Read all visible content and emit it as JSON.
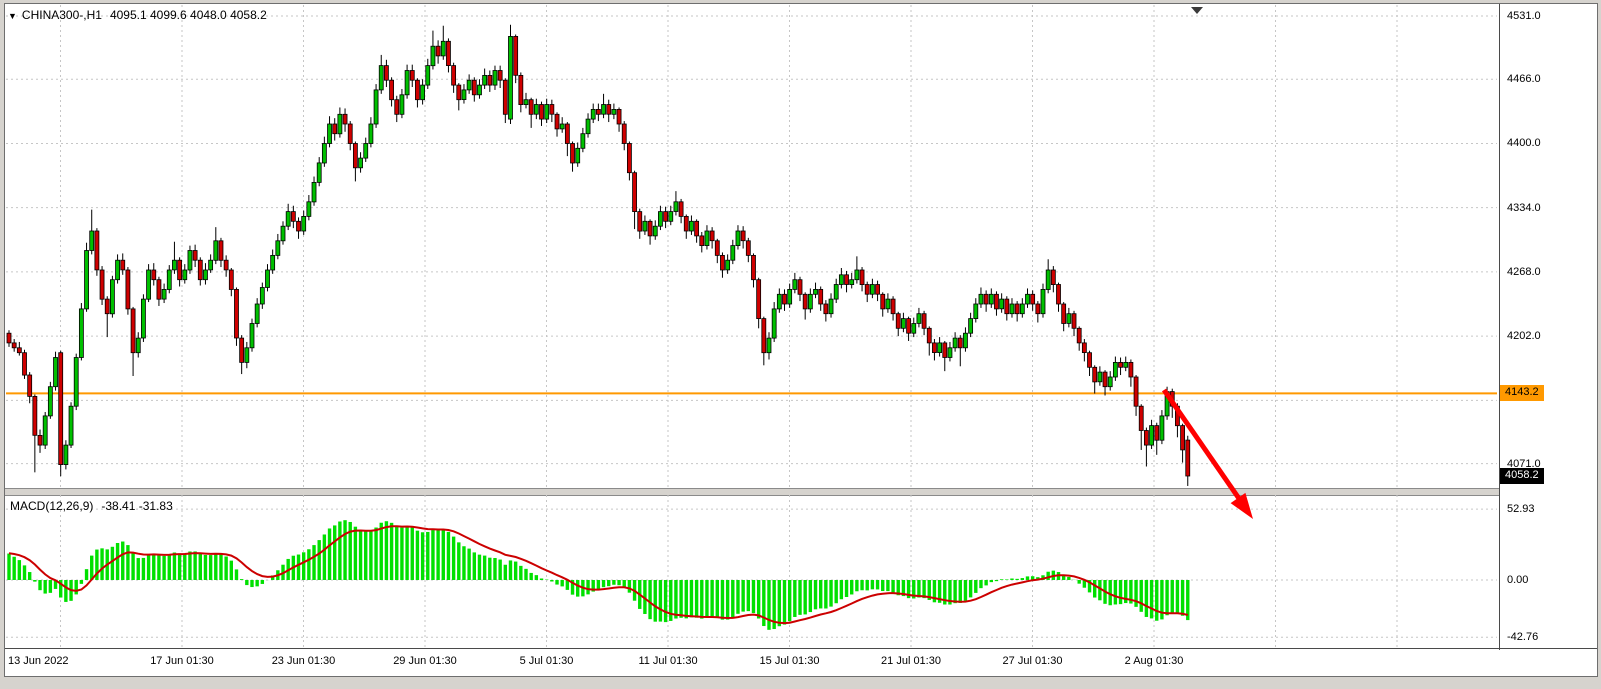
{
  "header": {
    "collapse_icon": "▼",
    "symbol_period": "CHINA300-,H1",
    "ohlc_text": "4095.1 4099.6 4048.0 4058.2"
  },
  "indicator_label": {
    "name": "MACD(12,26,9)",
    "values": "-38.41 -31.83"
  },
  "tags": {
    "hline": {
      "text": "4143.2",
      "value": 4143.2,
      "color": "#FF9900"
    },
    "current": {
      "text": "4058.2",
      "value": 4058.2,
      "bg": "#000000",
      "fg": "#FFFFFF"
    }
  },
  "chart_data": {
    "type": "candlestick",
    "title": "CHINA300-,H1",
    "symbol": "CHINA300-",
    "timeframe": "H1",
    "current_ohlc": {
      "open": 4095.1,
      "high": 4099.6,
      "low": 4048.0,
      "close": 4058.2
    },
    "price_ticks": [
      {
        "text": "4531.0",
        "value": 4531
      },
      {
        "text": "4466.0",
        "value": 4466
      },
      {
        "text": "4400.0",
        "value": 4400
      },
      {
        "text": "4334.0",
        "value": 4334
      },
      {
        "text": "4268.0",
        "value": 4268
      },
      {
        "text": "4202.0",
        "value": 4202
      },
      {
        "text": "4071.0",
        "value": 4071
      }
    ],
    "grid_levels": [
      4531,
      4466,
      4400,
      4334,
      4268,
      4202,
      4136,
      4071
    ],
    "x_tick_labels": [
      "13 Jun 2022",
      "17 Jun 01:30",
      "23 Jun 01:30",
      "29 Jun 01:30",
      "5 Jul 01:30",
      "11 Jul 01:30",
      "15 Jul 01:30",
      "21 Jul 01:30",
      "27 Jul 01:30",
      "2 Aug 01:30"
    ],
    "horizontal_line": {
      "value": 4143.2,
      "color": "#FF9900"
    },
    "arrow": {
      "from": [
        1164,
        390
      ],
      "to": [
        1253,
        519
      ],
      "color": "#FF0000"
    },
    "candles": [
      [
        4205,
        4208,
        4191,
        4195
      ],
      [
        4195,
        4199,
        4186,
        4190
      ],
      [
        4190,
        4196,
        4182,
        4185
      ],
      [
        4185,
        4188,
        4158,
        4162
      ],
      [
        4162,
        4165,
        4133,
        4140
      ],
      [
        4140,
        4142,
        4062,
        4100
      ],
      [
        4100,
        4106,
        4082,
        4090
      ],
      [
        4090,
        4124,
        4086,
        4120
      ],
      [
        4120,
        4155,
        4117,
        4150
      ],
      [
        4150,
        4186,
        4146,
        4180
      ],
      [
        4185,
        4187,
        4058,
        4070
      ],
      [
        4070,
        4095,
        4065,
        4090
      ],
      [
        4090,
        4134,
        4087,
        4130
      ],
      [
        4130,
        4184,
        4126,
        4180
      ],
      [
        4180,
        4236,
        4177,
        4230
      ],
      [
        4230,
        4298,
        4227,
        4290
      ],
      [
        4290,
        4332,
        4286,
        4310
      ],
      [
        4310,
        4313,
        4264,
        4270
      ],
      [
        4270,
        4274,
        4234,
        4240
      ],
      [
        4240,
        4243,
        4201,
        4225
      ],
      [
        4225,
        4264,
        4221,
        4260
      ],
      [
        4260,
        4286,
        4256,
        4280
      ],
      [
        4280,
        4287,
        4265,
        4270
      ],
      [
        4270,
        4273,
        4224,
        4230
      ],
      [
        4230,
        4232,
        4161,
        4185
      ],
      [
        4185,
        4206,
        4180,
        4200
      ],
      [
        4200,
        4245,
        4196,
        4240
      ],
      [
        4240,
        4276,
        4237,
        4270
      ],
      [
        4270,
        4277,
        4254,
        4260
      ],
      [
        4260,
        4263,
        4233,
        4240
      ],
      [
        4240,
        4256,
        4236,
        4250
      ],
      [
        4250,
        4275,
        4246,
        4270
      ],
      [
        4270,
        4299,
        4266,
        4280
      ],
      [
        4280,
        4283,
        4253,
        4260
      ],
      [
        4260,
        4276,
        4256,
        4270
      ],
      [
        4270,
        4295,
        4266,
        4290
      ],
      [
        4290,
        4296,
        4273,
        4280
      ],
      [
        4280,
        4283,
        4254,
        4260
      ],
      [
        4260,
        4277,
        4255,
        4270
      ],
      [
        4270,
        4286,
        4267,
        4280
      ],
      [
        4280,
        4314,
        4276,
        4300
      ],
      [
        4300,
        4303,
        4273,
        4280
      ],
      [
        4280,
        4285,
        4263,
        4270
      ],
      [
        4270,
        4272,
        4243,
        4250
      ],
      [
        4250,
        4252,
        4192,
        4200
      ],
      [
        4200,
        4203,
        4163,
        4175
      ],
      [
        4175,
        4196,
        4169,
        4190
      ],
      [
        4190,
        4220,
        4186,
        4215
      ],
      [
        4215,
        4241,
        4211,
        4235
      ],
      [
        4235,
        4257,
        4230,
        4252
      ],
      [
        4252,
        4276,
        4248,
        4270
      ],
      [
        4270,
        4291,
        4266,
        4285
      ],
      [
        4285,
        4307,
        4281,
        4300
      ],
      [
        4300,
        4320,
        4296,
        4315
      ],
      [
        4315,
        4338,
        4311,
        4330
      ],
      [
        4330,
        4336,
        4313,
        4320
      ],
      [
        4320,
        4324,
        4302,
        4310
      ],
      [
        4310,
        4331,
        4306,
        4325
      ],
      [
        4325,
        4347,
        4321,
        4340
      ],
      [
        4340,
        4366,
        4336,
        4360
      ],
      [
        4360,
        4386,
        4356,
        4380
      ],
      [
        4380,
        4407,
        4376,
        4400
      ],
      [
        4400,
        4428,
        4396,
        4420
      ],
      [
        4420,
        4426,
        4403,
        4410
      ],
      [
        4410,
        4437,
        4406,
        4430
      ],
      [
        4430,
        4436,
        4412,
        4420
      ],
      [
        4420,
        4423,
        4393,
        4400
      ],
      [
        4400,
        4402,
        4361,
        4375
      ],
      [
        4375,
        4391,
        4370,
        4385
      ],
      [
        4385,
        4406,
        4381,
        4400
      ],
      [
        4400,
        4427,
        4396,
        4420
      ],
      [
        4420,
        4461,
        4416,
        4455
      ],
      [
        4455,
        4491,
        4451,
        4480
      ],
      [
        4480,
        4486,
        4458,
        4465
      ],
      [
        4465,
        4468,
        4438,
        4445
      ],
      [
        4445,
        4449,
        4422,
        4430
      ],
      [
        4430,
        4456,
        4426,
        4450
      ],
      [
        4450,
        4481,
        4446,
        4475
      ],
      [
        4475,
        4481,
        4458,
        4465
      ],
      [
        4465,
        4467,
        4437,
        4445
      ],
      [
        4445,
        4466,
        4440,
        4460
      ],
      [
        4460,
        4487,
        4456,
        4480
      ],
      [
        4480,
        4516,
        4476,
        4500
      ],
      [
        4500,
        4506,
        4482,
        4490
      ],
      [
        4490,
        4521,
        4486,
        4505
      ],
      [
        4505,
        4508,
        4473,
        4480
      ],
      [
        4480,
        4483,
        4452,
        4460
      ],
      [
        4460,
        4462,
        4434,
        4445
      ],
      [
        4445,
        4461,
        4441,
        4455
      ],
      [
        4455,
        4471,
        4451,
        4465
      ],
      [
        4465,
        4468,
        4443,
        4450
      ],
      [
        4450,
        4466,
        4446,
        4460
      ],
      [
        4460,
        4477,
        4456,
        4470
      ],
      [
        4470,
        4475,
        4453,
        4460
      ],
      [
        4460,
        4480,
        4455,
        4475
      ],
      [
        4475,
        4480,
        4457,
        4465
      ],
      [
        4465,
        4467,
        4421,
        4430
      ],
      [
        4425,
        4522,
        4420,
        4510
      ],
      [
        4510,
        4512,
        4462,
        4470
      ],
      [
        4470,
        4473,
        4432,
        4440
      ],
      [
        4440,
        4452,
        4436,
        4445
      ],
      [
        4445,
        4447,
        4416,
        4430
      ],
      [
        4430,
        4446,
        4425,
        4440
      ],
      [
        4440,
        4443,
        4418,
        4425
      ],
      [
        4425,
        4446,
        4421,
        4440
      ],
      [
        4440,
        4445,
        4422,
        4430
      ],
      [
        4430,
        4432,
        4407,
        4415
      ],
      [
        4415,
        4427,
        4411,
        4420
      ],
      [
        4420,
        4422,
        4387,
        4400
      ],
      [
        4400,
        4402,
        4371,
        4380
      ],
      [
        4380,
        4401,
        4376,
        4395
      ],
      [
        4395,
        4416,
        4391,
        4410
      ],
      [
        4410,
        4431,
        4406,
        4425
      ],
      [
        4425,
        4441,
        4421,
        4435
      ],
      [
        4435,
        4441,
        4423,
        4430
      ],
      [
        4430,
        4451,
        4426,
        4440
      ],
      [
        4440,
        4445,
        4422,
        4430
      ],
      [
        4430,
        4441,
        4425,
        4435
      ],
      [
        4435,
        4437,
        4412,
        4420
      ],
      [
        4420,
        4423,
        4393,
        4400
      ],
      [
        4400,
        4402,
        4362,
        4370
      ],
      [
        4370,
        4372,
        4312,
        4330
      ],
      [
        4330,
        4333,
        4302,
        4310
      ],
      [
        4310,
        4326,
        4306,
        4320
      ],
      [
        4320,
        4322,
        4296,
        4305
      ],
      [
        4305,
        4321,
        4301,
        4315
      ],
      [
        4315,
        4336,
        4311,
        4330
      ],
      [
        4330,
        4335,
        4313,
        4320
      ],
      [
        4320,
        4336,
        4316,
        4330
      ],
      [
        4330,
        4351,
        4326,
        4340
      ],
      [
        4340,
        4343,
        4318,
        4325
      ],
      [
        4325,
        4327,
        4302,
        4310
      ],
      [
        4310,
        4326,
        4306,
        4320
      ],
      [
        4320,
        4322,
        4298,
        4305
      ],
      [
        4305,
        4309,
        4288,
        4295
      ],
      [
        4295,
        4316,
        4291,
        4310
      ],
      [
        4310,
        4314,
        4292,
        4300
      ],
      [
        4300,
        4302,
        4277,
        4285
      ],
      [
        4285,
        4288,
        4262,
        4270
      ],
      [
        4270,
        4286,
        4266,
        4280
      ],
      [
        4280,
        4301,
        4276,
        4295
      ],
      [
        4295,
        4316,
        4291,
        4310
      ],
      [
        4310,
        4315,
        4292,
        4300
      ],
      [
        4300,
        4303,
        4278,
        4285
      ],
      [
        4285,
        4287,
        4252,
        4260
      ],
      [
        4260,
        4262,
        4210,
        4220
      ],
      [
        4220,
        4222,
        4172,
        4185
      ],
      [
        4185,
        4206,
        4178,
        4200
      ],
      [
        4200,
        4237,
        4196,
        4230
      ],
      [
        4230,
        4251,
        4226,
        4245
      ],
      [
        4245,
        4250,
        4228,
        4235
      ],
      [
        4235,
        4256,
        4231,
        4250
      ],
      [
        4250,
        4267,
        4246,
        4260
      ],
      [
        4260,
        4263,
        4238,
        4245
      ],
      [
        4245,
        4247,
        4219,
        4230
      ],
      [
        4230,
        4251,
        4226,
        4245
      ],
      [
        4245,
        4257,
        4241,
        4250
      ],
      [
        4250,
        4253,
        4228,
        4235
      ],
      [
        4235,
        4239,
        4217,
        4225
      ],
      [
        4225,
        4246,
        4221,
        4240
      ],
      [
        4240,
        4261,
        4236,
        4255
      ],
      [
        4255,
        4272,
        4251,
        4265
      ],
      [
        4265,
        4269,
        4247,
        4255
      ],
      [
        4255,
        4267,
        4251,
        4260
      ],
      [
        4260,
        4284,
        4256,
        4270
      ],
      [
        4270,
        4273,
        4248,
        4255
      ],
      [
        4255,
        4258,
        4237,
        4245
      ],
      [
        4245,
        4261,
        4241,
        4255
      ],
      [
        4255,
        4259,
        4238,
        4245
      ],
      [
        4245,
        4247,
        4222,
        4230
      ],
      [
        4230,
        4246,
        4226,
        4240
      ],
      [
        4240,
        4243,
        4218,
        4225
      ],
      [
        4225,
        4227,
        4202,
        4210
      ],
      [
        4210,
        4226,
        4206,
        4220
      ],
      [
        4220,
        4222,
        4197,
        4205
      ],
      [
        4205,
        4221,
        4201,
        4215
      ],
      [
        4215,
        4231,
        4211,
        4225
      ],
      [
        4225,
        4228,
        4203,
        4210
      ],
      [
        4210,
        4212,
        4182,
        4195
      ],
      [
        4195,
        4199,
        4177,
        4185
      ],
      [
        4185,
        4201,
        4181,
        4195
      ],
      [
        4195,
        4197,
        4166,
        4180
      ],
      [
        4180,
        4196,
        4176,
        4190
      ],
      [
        4190,
        4206,
        4186,
        4200
      ],
      [
        4200,
        4203,
        4171,
        4190
      ],
      [
        4190,
        4211,
        4186,
        4205
      ],
      [
        4205,
        4226,
        4201,
        4220
      ],
      [
        4220,
        4241,
        4216,
        4235
      ],
      [
        4235,
        4252,
        4231,
        4245
      ],
      [
        4245,
        4249,
        4227,
        4235
      ],
      [
        4235,
        4251,
        4231,
        4245
      ],
      [
        4245,
        4248,
        4223,
        4230
      ],
      [
        4230,
        4246,
        4226,
        4240
      ],
      [
        4240,
        4243,
        4218,
        4225
      ],
      [
        4225,
        4241,
        4221,
        4235
      ],
      [
        4235,
        4238,
        4217,
        4225
      ],
      [
        4225,
        4241,
        4221,
        4235
      ],
      [
        4235,
        4251,
        4231,
        4245
      ],
      [
        4245,
        4249,
        4228,
        4235
      ],
      [
        4235,
        4238,
        4216,
        4225
      ],
      [
        4225,
        4256,
        4221,
        4250
      ],
      [
        4250,
        4281,
        4246,
        4270
      ],
      [
        4270,
        4274,
        4247,
        4255
      ],
      [
        4255,
        4257,
        4227,
        4235
      ],
      [
        4235,
        4237,
        4207,
        4215
      ],
      [
        4215,
        4231,
        4211,
        4225
      ],
      [
        4225,
        4228,
        4202,
        4210
      ],
      [
        4210,
        4212,
        4187,
        4195
      ],
      [
        4195,
        4199,
        4176,
        4185
      ],
      [
        4185,
        4187,
        4161,
        4170
      ],
      [
        4170,
        4172,
        4143,
        4155
      ],
      [
        4155,
        4171,
        4151,
        4165
      ],
      [
        4165,
        4167,
        4141,
        4150
      ],
      [
        4150,
        4166,
        4146,
        4160
      ],
      [
        4160,
        4181,
        4156,
        4175
      ],
      [
        4175,
        4180,
        4162,
        4170
      ],
      [
        4170,
        4181,
        4166,
        4175
      ],
      [
        4175,
        4178,
        4150,
        4160
      ],
      [
        4160,
        4162,
        4120,
        4130
      ],
      [
        4130,
        4132,
        4085,
        4105
      ],
      [
        4105,
        4108,
        4068,
        4090
      ],
      [
        4090,
        4116,
        4086,
        4110
      ],
      [
        4110,
        4113,
        4080,
        4095
      ],
      [
        4095,
        4126,
        4091,
        4120
      ],
      [
        4120,
        4150,
        4116,
        4145
      ],
      [
        4145,
        4148,
        4118,
        4130
      ],
      [
        4130,
        4133,
        4098,
        4110
      ],
      [
        4110,
        4112,
        4072,
        4085
      ],
      [
        4095.1,
        4099.6,
        4048,
        4058.2
      ]
    ],
    "macd": {
      "type": "histogram+line",
      "params": [
        12,
        26,
        9
      ],
      "label": "MACD(12,26,9)",
      "last_main": -38.41,
      "last_signal": -31.83,
      "derived_from_candles": true,
      "axis_ticks": [
        {
          "text": "52.93",
          "value": 52.93
        },
        {
          "text": "0.00",
          "value": 0
        },
        {
          "text": "-42.76",
          "value": -42.76
        }
      ],
      "histogram_color": "#00E000",
      "signal_color": "#CC0000"
    },
    "colors": {
      "up": "#00C000",
      "down": "#CF0000",
      "outline": "#000000",
      "grid": "#C6C6C6",
      "background": "#FFFFFF"
    }
  }
}
